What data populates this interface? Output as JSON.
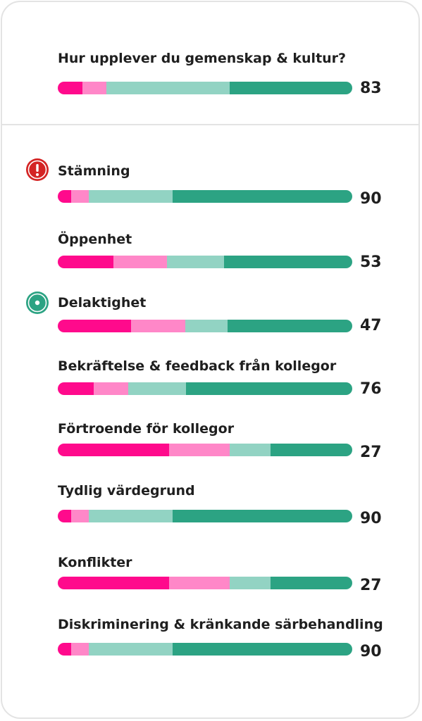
{
  "colors": {
    "very_negative": "#ff0a8c",
    "negative": "#ff87c8",
    "positive": "#92d3c3",
    "very_positive": "#2ca383",
    "alert": "#d42424",
    "focus": "#2ca383"
  },
  "summary": {
    "question": "Hur upplever du gemenskap & kultur?",
    "score": "83",
    "distribution": [
      0.084,
      0.08,
      0.42,
      0.416
    ]
  },
  "items": [
    {
      "label": "Stämning",
      "score": "90",
      "status_icon": "alert-icon",
      "distribution": [
        0.045,
        0.06,
        0.285,
        0.61
      ]
    },
    {
      "label": "Öppenhet",
      "score": "53",
      "status_icon": "",
      "distribution": [
        0.188,
        0.184,
        0.193,
        0.435
      ]
    },
    {
      "label": "Delaktighet",
      "score": "47",
      "status_icon": "focus-target-icon",
      "distribution": [
        0.248,
        0.186,
        0.143,
        0.423
      ]
    },
    {
      "label": "Bekräftelse & feedback från kollegor",
      "score": "76",
      "status_icon": "",
      "distribution": [
        0.123,
        0.117,
        0.195,
        0.565
      ]
    },
    {
      "label": "Förtroende för kollegor",
      "score": "27",
      "status_icon": "",
      "distribution": [
        0.378,
        0.205,
        0.14,
        0.277
      ]
    },
    {
      "label": "Tydlig värdegrund",
      "score": "90",
      "status_icon": "",
      "distribution": [
        0.045,
        0.06,
        0.285,
        0.61
      ]
    },
    {
      "label": "Konflikter",
      "score": "27",
      "status_icon": "",
      "distribution": [
        0.378,
        0.205,
        0.14,
        0.277
      ]
    },
    {
      "label": "Diskriminering & kränkande särbehandling",
      "score": "90",
      "status_icon": "",
      "distribution": [
        0.045,
        0.06,
        0.285,
        0.61
      ]
    }
  ]
}
